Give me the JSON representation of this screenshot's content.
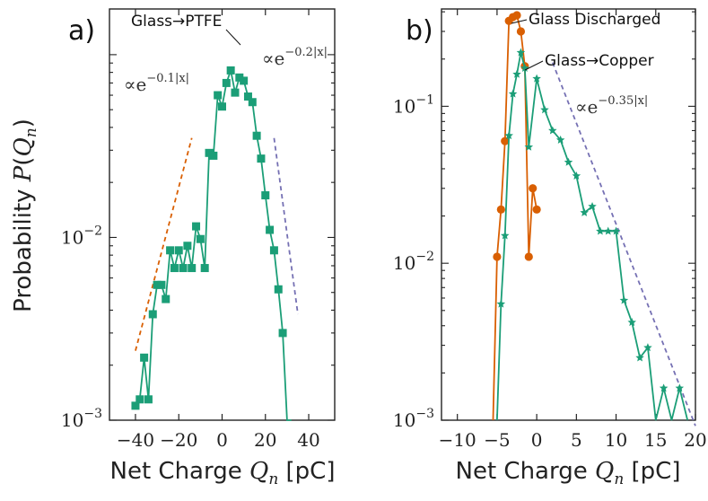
{
  "figure": {
    "ylabel": "Probability P(Q_n)",
    "colors": {
      "green": "#1b9e77",
      "orange": "#d95f02",
      "fit_purple": "#7570b3",
      "fit_orange": "#d95f02"
    }
  },
  "chart_data": [
    {
      "type": "line",
      "panel_label": "a)",
      "xlabel": "Net Charge Q_n [pC]",
      "xlim": [
        -52,
        52
      ],
      "ylim_log10": [
        -3,
        -0.75
      ],
      "yscale": "log",
      "xticks": [
        -40,
        -20,
        0,
        20,
        40
      ],
      "xtick_labels": [
        "−40",
        "−20",
        "0",
        "20",
        "40"
      ],
      "ytick_labels": [
        {
          "value": 0.01,
          "base": "10",
          "exp": "−2"
        },
        {
          "value": 0.001,
          "base": "10",
          "exp": "−3"
        }
      ],
      "series": [
        {
          "name": "Glass→PTFE",
          "marker": "square",
          "color": "#1b9e77",
          "x": [
            -40,
            -38,
            -36,
            -34,
            -32,
            -30,
            -28,
            -26,
            -24,
            -22,
            -20,
            -18,
            -16,
            -14,
            -12,
            -10,
            -8,
            -6,
            -4,
            -2,
            0,
            2,
            4,
            6,
            8,
            10,
            12,
            14,
            16,
            18,
            20,
            22,
            24,
            26,
            28,
            30,
            32
          ],
          "y": [
            0.0012,
            0.0013,
            0.0022,
            0.0013,
            0.0038,
            0.0055,
            0.0055,
            0.0046,
            0.0085,
            0.0068,
            0.0085,
            0.0068,
            0.009,
            0.0068,
            0.0115,
            0.0098,
            0.0068,
            0.029,
            0.028,
            0.06,
            0.052,
            0.07,
            0.082,
            0.062,
            0.075,
            0.072,
            0.059,
            0.055,
            0.036,
            0.027,
            0.017,
            0.011,
            0.0085,
            0.0052,
            0.003,
            0.0009,
            0.0009
          ]
        }
      ],
      "fits": [
        {
          "label": "∝e",
          "exp": "−0.1|x|",
          "color": "#d95f02",
          "x": [
            -40,
            -14
          ],
          "y": [
            0.0024,
            0.035
          ]
        },
        {
          "label": "∝e",
          "exp": "−0.2|x|",
          "color": "#7570b3",
          "x": [
            24,
            35
          ],
          "y": [
            0.035,
            0.0038
          ]
        }
      ]
    },
    {
      "type": "line",
      "panel_label": "b)",
      "xlabel": "Net Charge Q_n [pC]",
      "xlim": [
        -12,
        20
      ],
      "ylim_log10": [
        -3,
        -0.38
      ],
      "yscale": "log",
      "xticks": [
        -10,
        -5,
        0,
        5,
        10,
        15,
        20
      ],
      "xtick_labels": [
        "−10",
        "−5",
        "0",
        "5",
        "10",
        "15",
        "20"
      ],
      "ytick_labels": [
        {
          "value": 0.1,
          "base": "10",
          "exp": "−1"
        },
        {
          "value": 0.01,
          "base": "10",
          "exp": "−2"
        },
        {
          "value": 0.001,
          "base": "10",
          "exp": "−3"
        }
      ],
      "series": [
        {
          "name": "Glass Discharged",
          "marker": "circle",
          "color": "#d95f02",
          "x": [
            -5.5,
            -5,
            -4.5,
            -4,
            -3.5,
            -3,
            -2.5,
            -2,
            -1.5,
            -1,
            -0.5,
            0
          ],
          "y": [
            0.0009,
            0.011,
            0.022,
            0.06,
            0.35,
            0.37,
            0.38,
            0.3,
            0.18,
            0.011,
            0.03,
            0.022
          ]
        },
        {
          "name": "Glass→Copper",
          "marker": "star",
          "color": "#1b9e77",
          "x": [
            -5,
            -4.5,
            -4,
            -3.5,
            -3,
            -2.5,
            -2,
            -1.5,
            -1,
            0,
            1,
            2,
            3,
            4,
            5,
            6,
            7,
            8,
            9,
            10,
            11,
            12,
            13,
            14,
            15,
            16,
            17,
            18,
            19
          ],
          "y": [
            0.0009,
            0.0055,
            0.015,
            0.065,
            0.12,
            0.16,
            0.22,
            0.175,
            0.055,
            0.15,
            0.095,
            0.07,
            0.061,
            0.044,
            0.036,
            0.021,
            0.023,
            0.016,
            0.016,
            0.016,
            0.0058,
            0.0042,
            0.0025,
            0.0029,
            0.0009,
            0.0016,
            0.0009,
            0.0016,
            0.0009
          ]
        }
      ],
      "fits": [
        {
          "label": "∝e",
          "exp": "−0.35|x|",
          "color": "#7570b3",
          "x": [
            2,
            20
          ],
          "y": [
            0.19,
            0.00092
          ]
        }
      ],
      "annotations": [
        {
          "text": "Glass Discharged",
          "points_to": [
            -2.5,
            0.38
          ]
        },
        {
          "text": "Glass→Copper",
          "points_to": [
            -2,
            0.22
          ]
        }
      ]
    }
  ],
  "labels": {
    "a_title_anno": "Glass→PTFE",
    "b_anno_1": "Glass Discharged",
    "b_anno_2": "Glass→Copper"
  }
}
